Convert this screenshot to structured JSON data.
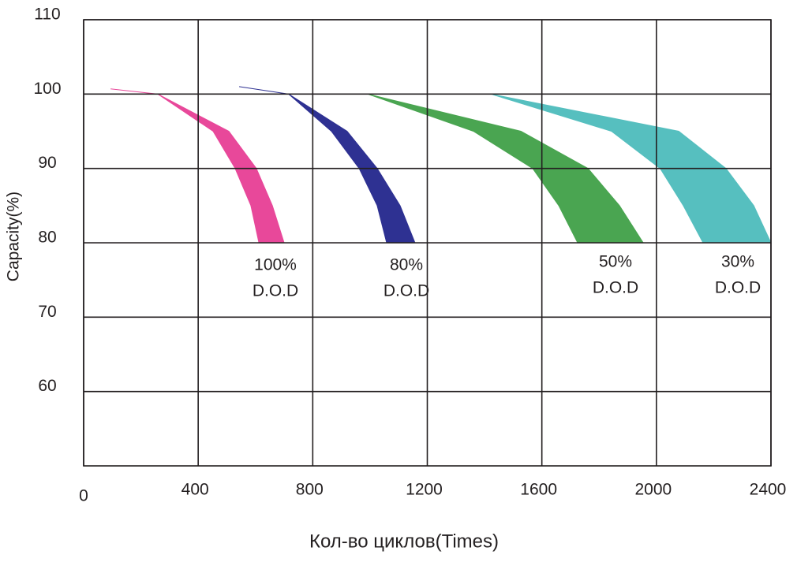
{
  "chart_data": {
    "type": "band",
    "y_label": "Capacity(%)",
    "x_label": "Кол-во циклов(Times)",
    "xlim": [
      0,
      2400
    ],
    "xticks": [
      0,
      400,
      800,
      1200,
      1600,
      2000,
      2400
    ],
    "ylim": [
      50,
      110
    ],
    "yticks": [
      60,
      70,
      80,
      90,
      100,
      110
    ],
    "grid": true,
    "series": [
      {
        "label_lines": [
          "100%",
          "D.O.D"
        ],
        "color": "#e8489a",
        "values": [
          100.7,
          100,
          95,
          90,
          85,
          80
        ],
        "x_left": [
          94,
          259,
          452,
          529,
          584,
          612
        ],
        "x_right": [
          94,
          259,
          507,
          603,
          659,
          700
        ]
      },
      {
        "label_lines": [
          "80%",
          "D.O.D"
        ],
        "color": "#2e3192",
        "values": [
          101,
          100,
          95,
          90,
          85,
          80
        ],
        "x_left": [
          543,
          716,
          865,
          962,
          1025,
          1058
        ],
        "x_right": [
          543,
          716,
          920,
          1025,
          1105,
          1157
        ]
      },
      {
        "label_lines": [
          "50%",
          "D.O.D"
        ],
        "color": "#4aa551",
        "values": [
          100,
          95,
          90,
          85,
          80
        ],
        "x_left": [
          992,
          1361,
          1568,
          1659,
          1725
        ],
        "x_right": [
          992,
          1527,
          1761,
          1871,
          1954
        ]
      },
      {
        "label_lines": [
          "30%",
          "D.O.D"
        ],
        "color": "#56bfbf",
        "values": [
          100,
          95,
          90,
          85,
          80
        ],
        "x_left": [
          1422,
          1843,
          2013,
          2094,
          2163
        ],
        "x_right": [
          1422,
          2078,
          2243,
          2340,
          2400
        ]
      }
    ]
  }
}
